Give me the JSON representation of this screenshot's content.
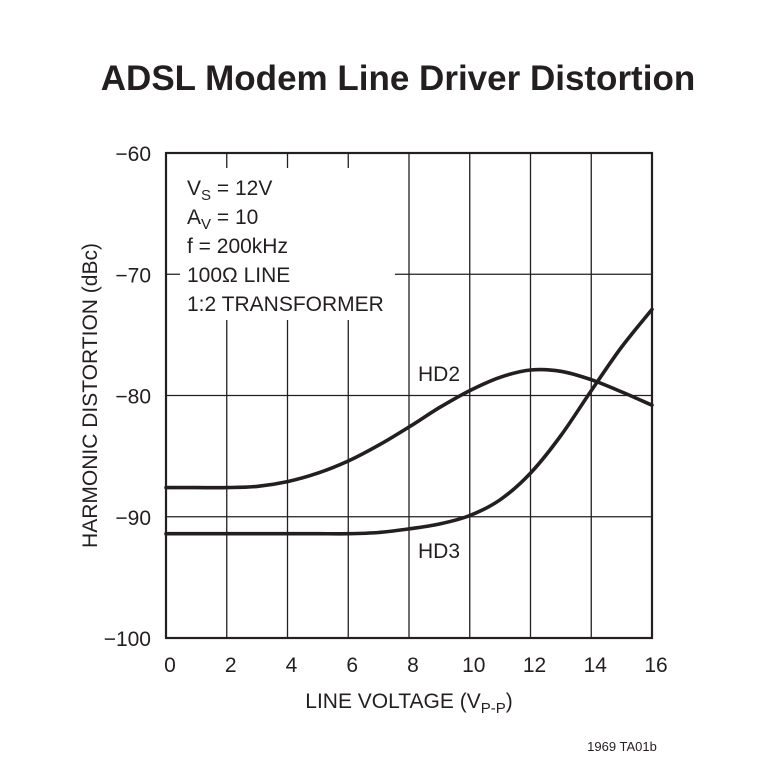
{
  "chart_data": {
    "type": "line",
    "title": "ADSL Modem Line Driver Distortion",
    "xlabel": {
      "main": "LINE VOLTAGE (V",
      "sub": "P-P",
      "close": ")"
    },
    "ylabel": "HARMONIC DISTORTION (dBc)",
    "xlim": [
      0,
      16
    ],
    "ylim": [
      -100,
      -60
    ],
    "x_ticks": [
      0,
      2,
      4,
      6,
      8,
      10,
      12,
      14,
      16
    ],
    "y_ticks": [
      -60,
      -70,
      -80,
      -90,
      -100
    ],
    "x_tick_labels": [
      "0",
      "2",
      "4",
      "6",
      "8",
      "10",
      "12",
      "14",
      "16"
    ],
    "y_tick_labels": [
      "−60",
      "−70",
      "−80",
      "−90",
      "−100"
    ],
    "grid": true,
    "series": [
      {
        "name": "HD2",
        "x": [
          0,
          1,
          2,
          3,
          4,
          5,
          6,
          7,
          8,
          9,
          10,
          11,
          12,
          13,
          14,
          15,
          16
        ],
        "y": [
          -87.6,
          -87.6,
          -87.6,
          -87.5,
          -87.1,
          -86.4,
          -85.4,
          -84.1,
          -82.6,
          -81.0,
          -79.6,
          -78.5,
          -77.9,
          -78.0,
          -78.7,
          -79.7,
          -80.8
        ]
      },
      {
        "name": "HD3",
        "x": [
          0,
          1,
          2,
          3,
          4,
          5,
          6,
          7,
          8,
          9,
          10,
          11,
          12,
          13,
          14,
          15,
          16
        ],
        "y": [
          -91.4,
          -91.4,
          -91.4,
          -91.4,
          -91.4,
          -91.4,
          -91.4,
          -91.3,
          -91.0,
          -90.6,
          -89.9,
          -88.6,
          -86.4,
          -83.3,
          -79.6,
          -76.0,
          -72.9
        ]
      }
    ],
    "annotations": [
      {
        "main": "V",
        "sub": "S",
        "rest": " = 12V"
      },
      {
        "main": "A",
        "sub": "V",
        "rest": " = 10"
      },
      {
        "main": "f = 200kHz",
        "sub": "",
        "rest": ""
      },
      {
        "main": "100Ω LINE",
        "sub": "",
        "rest": ""
      },
      {
        "main": "1:2 TRANSFORMER",
        "sub": "",
        "rest": ""
      }
    ],
    "figure_code": "1969 TA01b"
  }
}
